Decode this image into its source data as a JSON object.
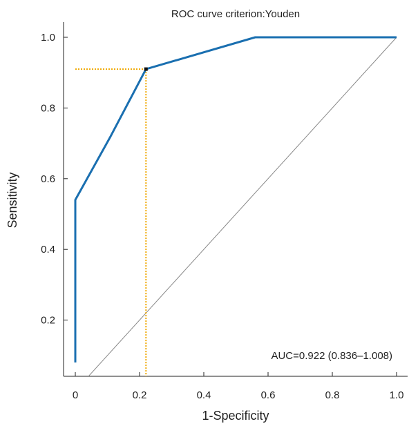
{
  "chart_data": {
    "type": "line",
    "title": "ROC curve criterion:Youden",
    "xlabel": "1-Specificity",
    "ylabel": "Sensitivity",
    "xlim": [
      0,
      1.0
    ],
    "ylim": [
      0.1,
      1.0
    ],
    "xticks": [
      "0",
      "0.2",
      "0.4",
      "0.6",
      "0.8",
      "1.0"
    ],
    "yticks": [
      "0.2",
      "0.4",
      "0.6",
      "0.8",
      "1.0"
    ],
    "series": [
      {
        "color": "#1a6fb0",
        "x": [
          0,
          0,
          0.11,
          0.22,
          0.56,
          1.0
        ],
        "y": [
          0.08,
          0.54,
          0.72,
          0.91,
          1.0,
          1.0
        ]
      }
    ],
    "reference_line": {
      "x": [
        0,
        1
      ],
      "y": [
        0,
        1
      ],
      "color": "#888888"
    },
    "cutoff_point": {
      "x": 0.22,
      "y": 0.91,
      "guide_color": "#f0a800"
    },
    "annotation": "AUC=0.922 (0.836–1.008)",
    "grid": false
  }
}
